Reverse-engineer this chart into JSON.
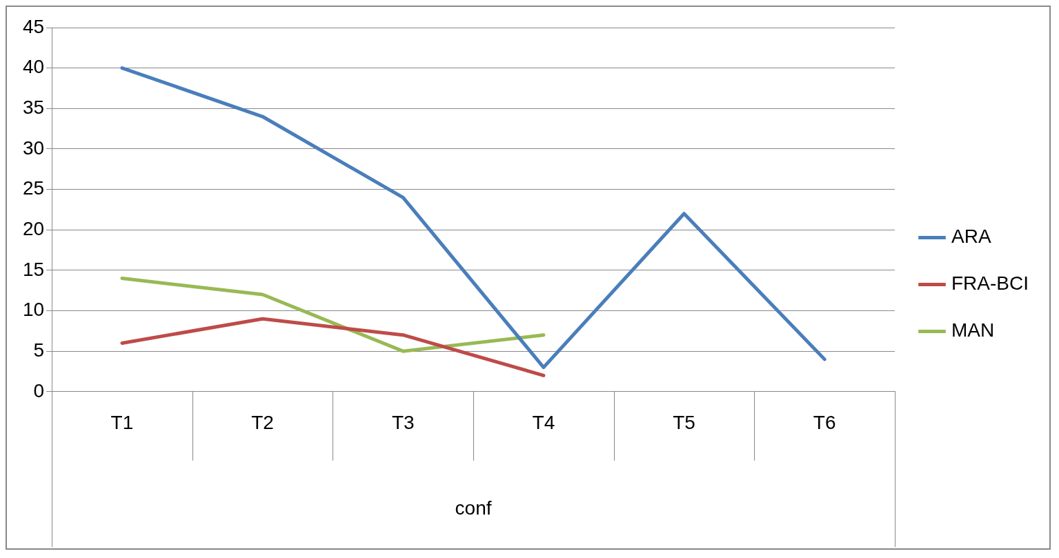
{
  "chart_data": {
    "type": "line",
    "xlabel": "conf",
    "categories": [
      "T1",
      "T2",
      "T3",
      "T4",
      "T5",
      "T6"
    ],
    "series": [
      {
        "name": "ARA",
        "color": "#4a7ebb",
        "values": [
          40,
          34,
          24,
          3,
          22,
          4
        ]
      },
      {
        "name": "FRA-BCI",
        "color": "#be4b48",
        "values": [
          6,
          9,
          7,
          2,
          null,
          null
        ]
      },
      {
        "name": "MAN",
        "color": "#98b954",
        "values": [
          14,
          12,
          5,
          7,
          null,
          null
        ]
      }
    ],
    "ylim": [
      0,
      45
    ],
    "yticks": [
      0,
      5,
      10,
      15,
      20,
      25,
      30,
      35,
      40,
      45
    ],
    "grid": "y",
    "legend": "right",
    "marker": "none",
    "line_style": "solid"
  }
}
